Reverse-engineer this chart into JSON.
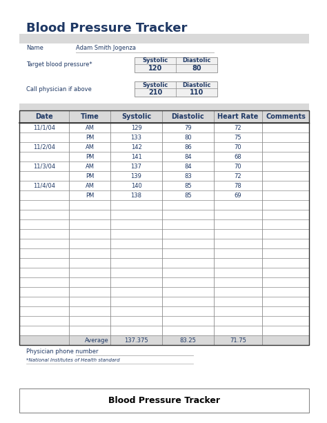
{
  "title": "Blood Pressure Tracker",
  "name_label": "Name",
  "name_value": "Adam Smith Jogenza",
  "target_label": "Target blood pressure*",
  "call_label": "Call physician if above",
  "systolic_label": "Systolic",
  "diastolic_label": "Diastolic",
  "target_systolic": "120",
  "target_diastolic": "80",
  "call_systolic": "210",
  "call_diastolic": "110",
  "col_headers": [
    "Date",
    "Time",
    "Systolic",
    "Diastolic",
    "Heart Rate",
    "Comments"
  ],
  "table_data": [
    [
      "11/1/04",
      "AM",
      "129",
      "79",
      "72",
      ""
    ],
    [
      "",
      "PM",
      "133",
      "80",
      "75",
      ""
    ],
    [
      "11/2/04",
      "AM",
      "142",
      "86",
      "70",
      ""
    ],
    [
      "",
      "PM",
      "141",
      "84",
      "68",
      ""
    ],
    [
      "11/3/04",
      "AM",
      "137",
      "84",
      "70",
      ""
    ],
    [
      "",
      "PM",
      "139",
      "83",
      "72",
      ""
    ],
    [
      "11/4/04",
      "AM",
      "140",
      "85",
      "78",
      ""
    ],
    [
      "",
      "PM",
      "138",
      "85",
      "69",
      ""
    ],
    [
      "",
      "",
      "",
      "",
      "",
      ""
    ],
    [
      "",
      "",
      "",
      "",
      "",
      ""
    ],
    [
      "",
      "",
      "",
      "",
      "",
      ""
    ],
    [
      "",
      "",
      "",
      "",
      "",
      ""
    ],
    [
      "",
      "",
      "",
      "",
      "",
      ""
    ],
    [
      "",
      "",
      "",
      "",
      "",
      ""
    ],
    [
      "",
      "",
      "",
      "",
      "",
      ""
    ],
    [
      "",
      "",
      "",
      "",
      "",
      ""
    ],
    [
      "",
      "",
      "",
      "",
      "",
      ""
    ],
    [
      "",
      "",
      "",
      "",
      "",
      ""
    ],
    [
      "",
      "",
      "",
      "",
      "",
      ""
    ],
    [
      "",
      "",
      "",
      "",
      "",
      ""
    ],
    [
      "",
      "",
      "",
      "",
      "",
      ""
    ],
    [
      "",
      "",
      "",
      "",
      "",
      ""
    ]
  ],
  "avg_label": "Average",
  "avg_systolic": "137.375",
  "avg_diastolic": "83.25",
  "avg_heart_rate": "71.75",
  "physician_label": "Physician phone number",
  "footnote": "*National Institutes of Health standard",
  "footer_title": "Blood Pressure Tracker",
  "bg_color": "#ffffff",
  "name_bar_bg": "#d9d9d9",
  "table_header_bg": "#d9d9d9",
  "avg_row_bg": "#d9d9d9",
  "pre_table_bar_bg": "#d9d9d9",
  "text_color_blue": "#1f3864",
  "title_fontsize": 13,
  "small_fontsize": 6,
  "table_header_fontsize": 7,
  "table_data_fontsize": 6,
  "footer_fontsize": 9
}
